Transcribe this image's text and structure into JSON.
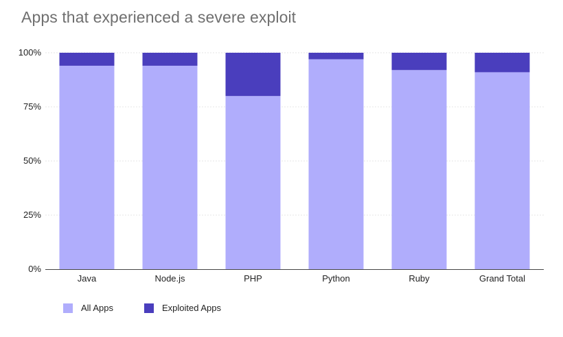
{
  "chart_data": {
    "type": "bar",
    "stacked": true,
    "title": "Apps that experienced a severe exploit",
    "categories": [
      "Java",
      "Node.js",
      "PHP",
      "Python",
      "Ruby",
      "Grand Total"
    ],
    "series": [
      {
        "name": "All Apps",
        "color": "#b0adfc",
        "values": [
          94,
          94,
          80,
          97,
          92,
          91
        ]
      },
      {
        "name": "Exploited Apps",
        "color": "#4a3ebd",
        "values": [
          6,
          6,
          20,
          3,
          8,
          9
        ]
      }
    ],
    "yticks": [
      0,
      25,
      50,
      75,
      100
    ],
    "ytick_labels": [
      "0%",
      "25%",
      "50%",
      "75%",
      "100%"
    ],
    "ylim": [
      0,
      100
    ],
    "xlabel": "",
    "ylabel": "",
    "grid": true,
    "legend_position": "bottom-left"
  }
}
